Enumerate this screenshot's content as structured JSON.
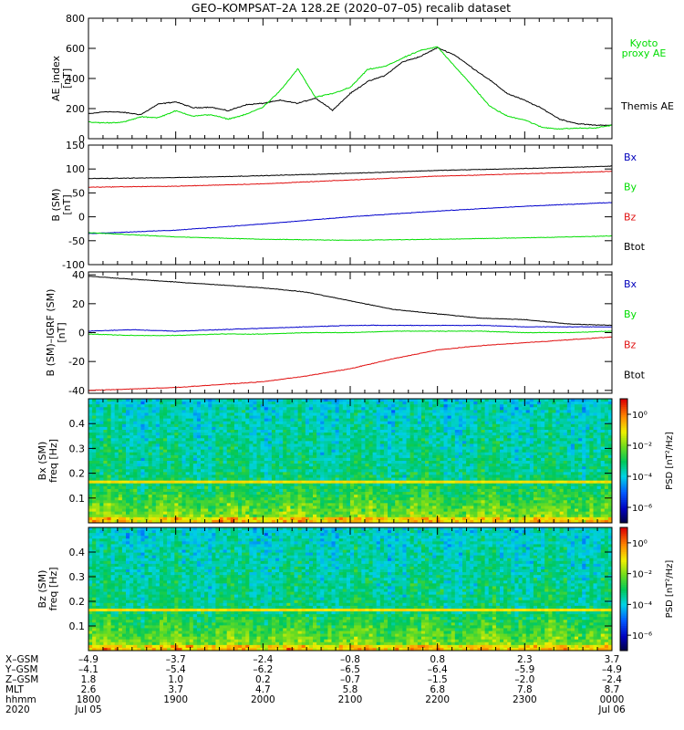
{
  "title": "GEO–KOMPSAT–2A 128.2E (2020–07–05) recalib dataset",
  "colors": {
    "black": "#000000",
    "red": "#e01010",
    "green": "#00dd00",
    "blue": "#0000cc",
    "text_blue": "#0000bb"
  },
  "time_axis": {
    "x_range_hours": [
      18,
      24
    ],
    "ticks_hours": [
      18,
      19,
      20,
      21,
      22,
      23,
      24
    ],
    "minor_per_major": 6
  },
  "chart_data": [
    {
      "type": "line",
      "id": "ae",
      "ylabel": [
        "AE_index",
        "[nT]"
      ],
      "ylim": [
        0,
        800
      ],
      "yticks": [
        0,
        200,
        400,
        600,
        800
      ],
      "legend": [
        {
          "label_lines": [
            "Kyoto",
            "proxy AE"
          ],
          "color": "green"
        },
        {
          "label_lines": [
            "Themis AE"
          ],
          "color": "black"
        }
      ],
      "series": [
        {
          "name": "Themis AE",
          "color": "black",
          "x": [
            18.0,
            18.2,
            18.4,
            18.6,
            18.8,
            19.0,
            19.2,
            19.4,
            19.6,
            19.8,
            20.0,
            20.2,
            20.4,
            20.6,
            20.8,
            21.0,
            21.2,
            21.4,
            21.6,
            21.8,
            22.0,
            22.2,
            22.4,
            22.6,
            22.8,
            23.0,
            23.2,
            23.4,
            23.6,
            23.8,
            24.0
          ],
          "y": [
            165,
            180,
            175,
            160,
            230,
            245,
            205,
            210,
            185,
            225,
            235,
            255,
            235,
            270,
            190,
            300,
            380,
            420,
            510,
            545,
            605,
            555,
            470,
            390,
            300,
            255,
            200,
            130,
            100,
            90,
            90
          ]
        },
        {
          "name": "Kyoto proxy AE",
          "color": "green",
          "x": [
            18.0,
            18.2,
            18.4,
            18.6,
            18.8,
            19.0,
            19.2,
            19.4,
            19.6,
            19.8,
            20.0,
            20.2,
            20.4,
            20.6,
            20.8,
            21.0,
            21.2,
            21.4,
            21.6,
            21.8,
            22.0,
            22.2,
            22.4,
            22.6,
            22.8,
            23.0,
            23.2,
            23.4,
            23.6,
            23.8,
            24.0
          ],
          "y": [
            110,
            105,
            110,
            145,
            140,
            185,
            150,
            160,
            130,
            160,
            210,
            320,
            465,
            275,
            300,
            340,
            460,
            480,
            535,
            585,
            610,
            480,
            350,
            215,
            150,
            125,
            75,
            65,
            70,
            70,
            90
          ]
        }
      ]
    },
    {
      "type": "line",
      "id": "bgsm",
      "ylabel": [
        "B (SM)",
        "[nT]"
      ],
      "ylim": [
        -100,
        150
      ],
      "yticks": [
        -100,
        -50,
        0,
        50,
        100,
        150
      ],
      "legend": [
        {
          "label_lines": [
            "Bx"
          ],
          "color": "blue"
        },
        {
          "label_lines": [
            "By"
          ],
          "color": "green"
        },
        {
          "label_lines": [
            "Bz"
          ],
          "color": "red"
        },
        {
          "label_lines": [
            "Btot"
          ],
          "color": "black"
        }
      ],
      "series": [
        {
          "name": "Btot",
          "color": "black",
          "x": [
            18,
            19,
            20,
            21,
            22,
            23,
            24
          ],
          "y": [
            80,
            82,
            86,
            91,
            97,
            101,
            106
          ]
        },
        {
          "name": "Bz",
          "color": "red",
          "x": [
            18,
            19,
            20,
            21,
            22,
            23,
            24
          ],
          "y": [
            62,
            64,
            69,
            77,
            85,
            90,
            95
          ]
        },
        {
          "name": "Bx",
          "color": "blue",
          "x": [
            18,
            19,
            20,
            21,
            22,
            23,
            24
          ],
          "y": [
            -35,
            -28,
            -15,
            0,
            12,
            22,
            30
          ]
        },
        {
          "name": "By",
          "color": "green",
          "x": [
            18,
            19,
            20,
            21,
            22,
            23,
            24
          ],
          "y": [
            -33,
            -42,
            -47,
            -49,
            -47,
            -44,
            -40
          ]
        }
      ]
    },
    {
      "type": "line",
      "id": "bresid",
      "ylabel": [
        "B (SM)–IGRF (SM)",
        "[nT]"
      ],
      "ylim": [
        -42,
        42
      ],
      "yticks": [
        -40,
        -20,
        0,
        20,
        40
      ],
      "legend": [
        {
          "label_lines": [
            "Bx"
          ],
          "color": "blue"
        },
        {
          "label_lines": [
            "By"
          ],
          "color": "green"
        },
        {
          "label_lines": [
            "Bz"
          ],
          "color": "red"
        },
        {
          "label_lines": [
            "Btot"
          ],
          "color": "black"
        }
      ],
      "series": [
        {
          "name": "Btot",
          "color": "black",
          "x": [
            18,
            18.5,
            19,
            19.5,
            20,
            20.5,
            21,
            21.5,
            22,
            22.5,
            23,
            23.5,
            24
          ],
          "y": [
            39,
            37,
            35,
            33,
            31,
            28,
            22,
            16,
            13,
            10,
            9,
            6,
            5
          ]
        },
        {
          "name": "Bz",
          "color": "red",
          "x": [
            18,
            18.5,
            19,
            19.5,
            20,
            20.5,
            21,
            21.5,
            22,
            22.5,
            23,
            23.5,
            24
          ],
          "y": [
            -40,
            -39,
            -38,
            -36,
            -34,
            -30,
            -25,
            -18,
            -12,
            -9,
            -7,
            -5,
            -3
          ]
        },
        {
          "name": "Bx",
          "color": "blue",
          "x": [
            18,
            18.5,
            19,
            19.5,
            20,
            20.5,
            21,
            21.5,
            22,
            22.5,
            23,
            23.5,
            24
          ],
          "y": [
            1,
            2,
            1,
            2,
            3,
            4,
            5,
            5,
            5,
            5,
            4,
            4,
            4
          ]
        },
        {
          "name": "By",
          "color": "green",
          "x": [
            18,
            18.5,
            19,
            19.5,
            20,
            20.5,
            21,
            21.5,
            22,
            22.5,
            23,
            23.5,
            24
          ],
          "y": [
            -1,
            -2,
            -2,
            -1,
            -1,
            0,
            0,
            1,
            1,
            1,
            0,
            0,
            1
          ]
        }
      ]
    },
    {
      "type": "heatmap",
      "id": "bx_spec",
      "ylabel": [
        "Bx (SM)",
        "freq [Hz]"
      ],
      "ylim": [
        0,
        0.5
      ],
      "yticks": [
        0.1,
        0.2,
        0.3,
        0.4
      ],
      "ytick_labels": [
        "0.1",
        "0.2",
        "0.3",
        "0.4"
      ],
      "colorbar": {
        "label": "PSD [nT²/Hz]",
        "ticks": [
          "10⁰",
          "10⁻²",
          "10⁻⁴",
          "10⁻⁶"
        ],
        "log_range": [
          -7,
          1
        ]
      },
      "bright_line_hz": 0.167
    },
    {
      "type": "heatmap",
      "id": "bz_spec",
      "ylabel": [
        "Bz (SM)",
        "freq [Hz]"
      ],
      "ylim": [
        0,
        0.5
      ],
      "yticks": [
        0.1,
        0.2,
        0.3,
        0.4
      ],
      "ytick_labels": [
        "0.1",
        "0.2",
        "0.3",
        "0.4"
      ],
      "colorbar": {
        "label": "PSD [nT²/Hz]",
        "ticks": [
          "10⁰",
          "10⁻²",
          "10⁻⁴",
          "10⁻⁶"
        ],
        "log_range": [
          -7,
          1
        ]
      },
      "bright_line_hz": 0.167
    }
  ],
  "ephemeris": {
    "row_labels": [
      "X–GSM",
      "Y–GSM",
      "Z–GSM",
      "MLT",
      "hhmm",
      "2020"
    ],
    "columns": [
      [
        "–4.9",
        "–4.1",
        "1.8",
        "2.6",
        "1800",
        "Jul 05"
      ],
      [
        "–3.7",
        "–5.4",
        "1.0",
        "3.7",
        "1900",
        ""
      ],
      [
        "–2.4",
        "–6.2",
        "0.2",
        "4.7",
        "2000",
        ""
      ],
      [
        "–0.8",
        "–6.5",
        "–0.7",
        "5.8",
        "2100",
        ""
      ],
      [
        "0.8",
        "–6.4",
        "–1.5",
        "6.8",
        "2200",
        ""
      ],
      [
        "2.3",
        "–5.9",
        "–2.0",
        "7.8",
        "2300",
        ""
      ],
      [
        "3.7",
        "–4.9",
        "–2.4",
        "8.7",
        "0000",
        "Jul 06"
      ]
    ]
  }
}
